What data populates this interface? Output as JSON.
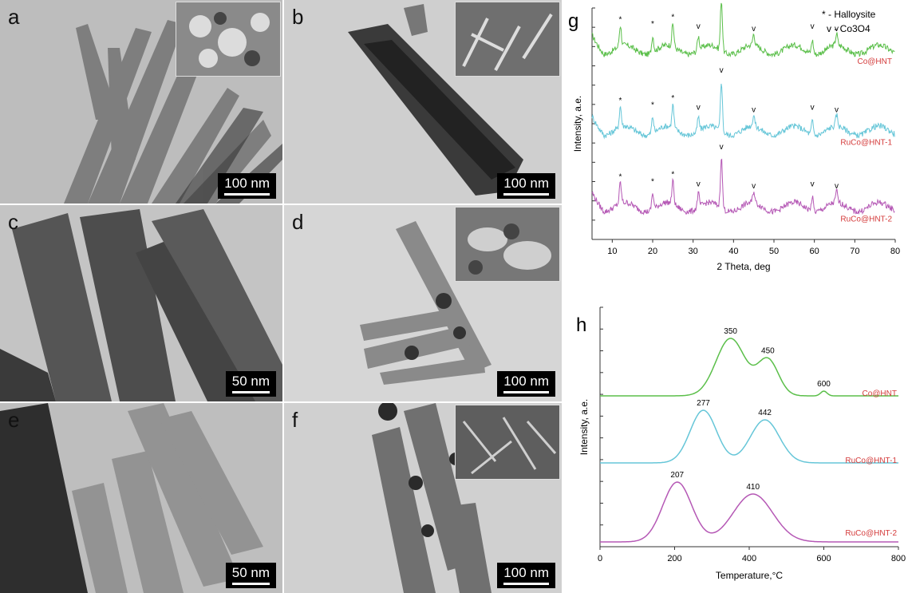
{
  "panels": [
    {
      "letter": "a",
      "scalebar": "100 nm",
      "inset": true
    },
    {
      "letter": "b",
      "scalebar": "100 nm",
      "inset": true
    },
    {
      "letter": "c",
      "scalebar": "50 nm",
      "inset": false
    },
    {
      "letter": "d",
      "scalebar": "100 nm",
      "inset": true
    },
    {
      "letter": "e",
      "scalebar": "50 nm",
      "inset": false
    },
    {
      "letter": "f",
      "scalebar": "100 nm",
      "inset": true
    }
  ],
  "chart_data": [
    {
      "type": "line",
      "panel": "g",
      "xlabel": "2 Theta, deg",
      "ylabel": "Intensity, a.e.",
      "xlim": [
        5,
        80
      ],
      "xticks": [
        10,
        20,
        30,
        40,
        50,
        60,
        70,
        80
      ],
      "legend": [
        "* - Halloysite",
        "v - Co3O4"
      ],
      "colors": {
        "Co@HNT": "#5bbf4a",
        "RuCo@HNT-1": "#66c6d8",
        "RuCo@HNT-2": "#b558b5",
        "label": "#d43b3b"
      },
      "peaks": {
        "halloysite": [
          12,
          20,
          25
        ],
        "co3o4": [
          31.3,
          37,
          45,
          59.5,
          65.5
        ]
      },
      "series": [
        {
          "name": "Co@HNT",
          "baseline": 0.82,
          "markers": [
            {
              "x": 12,
              "m": "*"
            },
            {
              "x": 20,
              "m": "*"
            },
            {
              "x": 25,
              "m": "*"
            },
            {
              "x": 31.3,
              "m": "v"
            },
            {
              "x": 37,
              "m": "v"
            },
            {
              "x": 45,
              "m": "v"
            },
            {
              "x": 59.5,
              "m": "v"
            },
            {
              "x": 65.5,
              "m": "v"
            }
          ]
        },
        {
          "name": "RuCo@HNT-1",
          "baseline": 0.47,
          "markers": [
            {
              "x": 12,
              "m": "*"
            },
            {
              "x": 20,
              "m": "*"
            },
            {
              "x": 25,
              "m": "*"
            },
            {
              "x": 31.3,
              "m": "v"
            },
            {
              "x": 37,
              "m": "v"
            },
            {
              "x": 45,
              "m": "v"
            },
            {
              "x": 59.5,
              "m": "v"
            },
            {
              "x": 65.5,
              "m": "v"
            }
          ]
        },
        {
          "name": "RuCo@HNT-2",
          "baseline": 0.14,
          "markers": [
            {
              "x": 12,
              "m": "*"
            },
            {
              "x": 20,
              "m": "*"
            },
            {
              "x": 25,
              "m": "*"
            },
            {
              "x": 31.3,
              "m": "v"
            },
            {
              "x": 37,
              "m": "v"
            },
            {
              "x": 45,
              "m": "v"
            },
            {
              "x": 59.5,
              "m": "v"
            },
            {
              "x": 65.5,
              "m": "v"
            }
          ]
        }
      ]
    },
    {
      "type": "line",
      "panel": "h",
      "xlabel": "Temperature,°C",
      "ylabel": "Intensity, a.e.",
      "xlim": [
        0,
        800
      ],
      "xticks": [
        0,
        200,
        400,
        600,
        800
      ],
      "colors": {
        "Co@HNT": "#5bbf4a",
        "RuCo@HNT-1": "#66c6d8",
        "RuCo@HNT-2": "#b558b5",
        "label": "#d43b3b"
      },
      "series": [
        {
          "name": "Co@HNT",
          "baseline": 0.63,
          "peaks": [
            {
              "x": 350,
              "label": "350",
              "h": 0.24,
              "w": 55
            },
            {
              "x": 450,
              "label": "450",
              "h": 0.15,
              "w": 40
            },
            {
              "x": 600,
              "label": "600",
              "h": 0.02,
              "w": 12
            }
          ]
        },
        {
          "name": "RuCo@HNT-1",
          "baseline": 0.35,
          "peaks": [
            {
              "x": 277,
              "label": "277",
              "h": 0.22,
              "w": 50
            },
            {
              "x": 442,
              "label": "442",
              "h": 0.18,
              "w": 55
            }
          ]
        },
        {
          "name": "RuCo@HNT-2",
          "baseline": 0.02,
          "peaks": [
            {
              "x": 207,
              "label": "207",
              "h": 0.25,
              "w": 55
            },
            {
              "x": 410,
              "label": "410",
              "h": 0.2,
              "w": 75
            }
          ]
        }
      ]
    }
  ]
}
